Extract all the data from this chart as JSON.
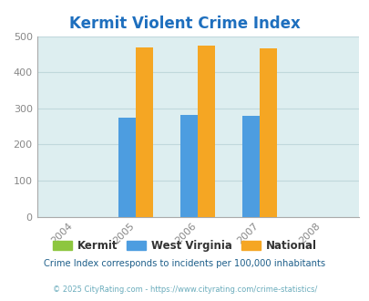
{
  "title": "Kermit Violent Crime Index",
  "title_color": "#1e6fbe",
  "years": [
    2004,
    2005,
    2006,
    2007,
    2008
  ],
  "bar_years": [
    2005,
    2006,
    2007
  ],
  "kermit_values": [
    0,
    0,
    0
  ],
  "wv_values": [
    274,
    282,
    279
  ],
  "national_values": [
    469,
    474,
    466
  ],
  "kermit_color": "#8dc63f",
  "wv_color": "#4d9de0",
  "national_color": "#f5a623",
  "bg_color": "#ddeef0",
  "ylim": [
    0,
    500
  ],
  "yticks": [
    0,
    100,
    200,
    300,
    400,
    500
  ],
  "xlim": [
    2003.4,
    2008.6
  ],
  "bar_width": 0.28,
  "bar_gap": 0.0,
  "legend_labels": [
    "Kermit",
    "West Virginia",
    "National"
  ],
  "footnote1": "Crime Index corresponds to incidents per 100,000 inhabitants",
  "footnote2": "© 2025 CityRating.com - https://www.cityrating.com/crime-statistics/",
  "footnote1_color": "#1e5f8a",
  "footnote2_color": "#6aacbc",
  "grid_color": "#c0d8dc",
  "tick_color": "#888888"
}
